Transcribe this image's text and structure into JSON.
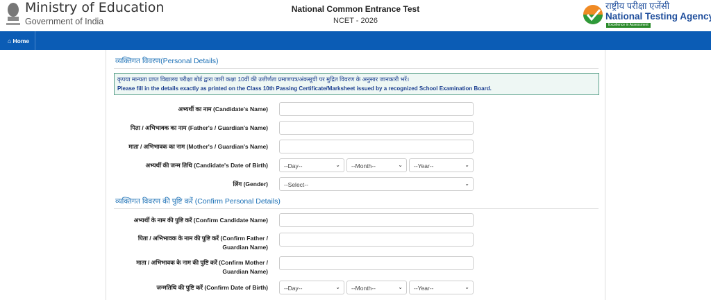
{
  "header": {
    "ministry": "Ministry of Education",
    "gov": "Government of India",
    "exam_title": "National Common Entrance Test",
    "exam_code": "NCET - 2026",
    "nta_hindi": "राष्ट्रीय परीक्षा एजेंसी",
    "nta_name": "National Testing Agency",
    "nta_tagline": "Excellence in Assessment"
  },
  "nav": {
    "home": "Home"
  },
  "personal": {
    "title": "व्यक्तिगत विवरण(Personal Details)",
    "note_hi": "कृपया मान्यता प्राप्त विद्यालय परीक्षा बोर्ड द्वारा जारी कक्षा 10वीं की उत्तीर्णता प्रमाणपत्र/अंकसूची पर मुद्रित विवरण के अनुसार जानकारी भरें।",
    "note_en": "Please fill in the details exactly as printed on the Class 10th Passing Certificate/Marksheet issued by a recognized School Examination Board.",
    "name": "अभ्यर्थी का नाम (Candidate's Name)",
    "father": "पिता / अभिभावक का नाम (Father's / Guardian's Name)",
    "mother": "माता / अभिभावक का नाम (Mother's / Guardian's Name)",
    "dob": "अभ्यर्थी की जन्म तिथि (Candidate's Date of Birth)",
    "gender": "लिंग (Gender)"
  },
  "confirm": {
    "title": "व्यक्तिगत विवरण की पुष्टि करें (Confirm Personal Details)",
    "name": "अभ्यर्थी के नाम की पुष्टि करें (Confirm Candidate Name)",
    "father_1": "पिता / अभिभावक के नाम की पुष्टि करें (Confirm Father /",
    "father_2": "Guardian Name)",
    "mother_1": "माता / अभिभावक के नाम की पुष्टि करें (Confirm Mother /",
    "mother_2": "Guardian Name)",
    "dob": "जन्मतिथि की पुष्टि करें (Confirm Date of Birth)"
  },
  "selects": {
    "day": "--Day--",
    "month": "--Month--",
    "year": "--Year--",
    "gender": "--Select--"
  },
  "colors": {
    "nav": "#0b5cb5",
    "section": "#1a6fb5"
  }
}
